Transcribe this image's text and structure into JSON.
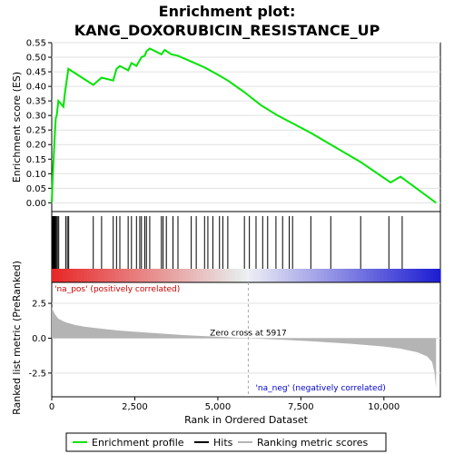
{
  "title_line1": "Enrichment plot:",
  "title_line2": "KANG_DOXORUBICIN_RESISTANCE_UP",
  "colors": {
    "enrichment": "#00e400",
    "hits": "#000000",
    "metric_fill": "#b4b4b4",
    "pos_label": "#cc0000",
    "neg_label": "#0000cc",
    "zero_line": "#aaaaaa"
  },
  "chart_data": [
    {
      "type": "line",
      "name": "enrichment-profile",
      "ylabel": "Enrichment score (ES)",
      "xlim": [
        0,
        11700
      ],
      "ylim": [
        -0.03,
        0.55
      ],
      "yticks": [
        0.0,
        0.05,
        0.1,
        0.15,
        0.2,
        0.25,
        0.3,
        0.35,
        0.4,
        0.45,
        0.5,
        0.55
      ],
      "ytick_labels": [
        "0.00",
        "0.05",
        "0.10",
        "0.15",
        "0.20",
        "0.25",
        "0.30",
        "0.35",
        "0.40",
        "0.45",
        "0.50",
        "0.55"
      ],
      "grid": true,
      "series": [
        {
          "name": "Enrichment profile",
          "x": [
            0,
            30,
            60,
            90,
            120,
            150,
            200,
            350,
            400,
            450,
            500,
            1250,
            1500,
            1850,
            1950,
            2050,
            2300,
            2400,
            2550,
            2700,
            2800,
            2850,
            2950,
            3300,
            3400,
            3600,
            3800,
            4200,
            4600,
            5000,
            5300,
            5800,
            6300,
            6800,
            7300,
            7800,
            8400,
            9300,
            10200,
            10500,
            11570
          ],
          "y": [
            0.0,
            0.09,
            0.16,
            0.23,
            0.29,
            0.3,
            0.35,
            0.33,
            0.38,
            0.42,
            0.46,
            0.405,
            0.43,
            0.42,
            0.46,
            0.47,
            0.455,
            0.48,
            0.47,
            0.5,
            0.505,
            0.52,
            0.53,
            0.51,
            0.525,
            0.51,
            0.505,
            0.485,
            0.465,
            0.44,
            0.42,
            0.38,
            0.335,
            0.3,
            0.27,
            0.24,
            0.2,
            0.14,
            0.07,
            0.09,
            0.0
          ]
        }
      ]
    },
    {
      "type": "scatter",
      "name": "hits",
      "xlim": [
        0,
        11700
      ],
      "x": [
        15,
        35,
        55,
        75,
        95,
        115,
        140,
        170,
        210,
        420,
        470,
        510,
        1250,
        1500,
        1850,
        1950,
        2050,
        2300,
        2400,
        2550,
        2650,
        2700,
        2800,
        2850,
        2950,
        3300,
        3350,
        3450,
        3650,
        3800,
        4200,
        4350,
        4600,
        4700,
        4850,
        5050,
        5150,
        5300,
        5800,
        5950,
        6150,
        6350,
        6500,
        6750,
        6950,
        7150,
        7250,
        7800,
        8400,
        9300,
        10150,
        10550
      ]
    },
    {
      "type": "area",
      "name": "ranked-list-metric",
      "ylabel": "Ranked list metric (PreRanked)",
      "xlabel": "Rank in Ordered Dataset",
      "xlim": [
        0,
        11700
      ],
      "ylim": [
        -4.2,
        4.0
      ],
      "yticks": [
        2.5,
        0.0,
        -2.5
      ],
      "ytick_labels": [
        "2.5",
        "0.0",
        "-2.5"
      ],
      "xticks": [
        0,
        2500,
        5000,
        7500,
        10000
      ],
      "xtick_labels": [
        "0",
        "2,500",
        "5,000",
        "7,500",
        "10,000"
      ],
      "x": [
        0,
        50,
        100,
        200,
        400,
        700,
        1000,
        1500,
        2000,
        3000,
        4000,
        5000,
        5917,
        7000,
        8000,
        9000,
        10000,
        10500,
        11000,
        11300,
        11450,
        11520,
        11570
      ],
      "y": [
        2.2,
        1.95,
        1.7,
        1.4,
        1.15,
        0.95,
        0.82,
        0.68,
        0.55,
        0.38,
        0.22,
        0.1,
        0.0,
        -0.12,
        -0.25,
        -0.4,
        -0.6,
        -0.75,
        -1.0,
        -1.3,
        -1.7,
        -2.4,
        -3.6
      ],
      "zero_cross_label": "Zero cross at 5917",
      "pos_label": "'na_pos' (positively correlated)",
      "neg_label": "'na_neg' (negatively correlated)"
    }
  ],
  "legend": {
    "items": [
      "Enrichment profile",
      "Hits",
      "Ranking metric scores"
    ]
  }
}
